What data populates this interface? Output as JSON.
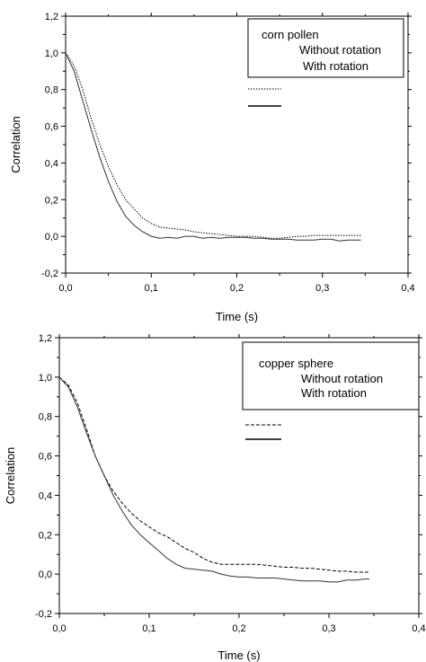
{
  "chart_data": [
    {
      "type": "line",
      "legend_title": "corn pollen",
      "legend_placement": "top-right",
      "xlabel": "Time (s)",
      "ylabel": "Correlation",
      "xlim": [
        0.0,
        0.4
      ],
      "ylim": [
        -0.2,
        1.2
      ],
      "x_ticks": [
        "0,0",
        "0,1",
        "0,2",
        "0,3",
        "0,4"
      ],
      "y_ticks": [
        "-0,2",
        "0,0",
        "0,2",
        "0,4",
        "0,6",
        "0,8",
        "1,0",
        "1,2"
      ],
      "series": [
        {
          "name": "Without rotation",
          "style": "dotted",
          "x": [
            0.0,
            0.01,
            0.02,
            0.03,
            0.04,
            0.05,
            0.06,
            0.07,
            0.08,
            0.09,
            0.1,
            0.11,
            0.12,
            0.13,
            0.14,
            0.15,
            0.16,
            0.17,
            0.18,
            0.19,
            0.2,
            0.21,
            0.22,
            0.23,
            0.24,
            0.25,
            0.26,
            0.27,
            0.28,
            0.29,
            0.3,
            0.31,
            0.32,
            0.33,
            0.34,
            0.345
          ],
          "y": [
            1.0,
            0.93,
            0.8,
            0.64,
            0.5,
            0.38,
            0.28,
            0.2,
            0.15,
            0.1,
            0.07,
            0.05,
            0.045,
            0.04,
            0.035,
            0.025,
            0.02,
            0.015,
            0.01,
            0.005,
            0.0,
            0.0,
            0.0,
            -0.005,
            -0.01,
            -0.01,
            -0.005,
            0.0,
            0.0,
            0.005,
            0.005,
            0.005,
            0.005,
            0.005,
            0.005,
            0.005
          ]
        },
        {
          "name": "With rotation",
          "style": "solid",
          "x": [
            0.0,
            0.01,
            0.02,
            0.03,
            0.04,
            0.05,
            0.06,
            0.07,
            0.08,
            0.09,
            0.1,
            0.11,
            0.12,
            0.13,
            0.14,
            0.15,
            0.16,
            0.17,
            0.18,
            0.19,
            0.2,
            0.21,
            0.22,
            0.23,
            0.24,
            0.25,
            0.26,
            0.27,
            0.28,
            0.29,
            0.3,
            0.31,
            0.32,
            0.33,
            0.34,
            0.345
          ],
          "y": [
            1.0,
            0.9,
            0.74,
            0.58,
            0.43,
            0.3,
            0.19,
            0.11,
            0.06,
            0.025,
            0.0,
            -0.01,
            -0.005,
            -0.01,
            0.0,
            0.0,
            -0.01,
            -0.005,
            -0.01,
            -0.005,
            -0.005,
            -0.005,
            -0.01,
            -0.01,
            -0.015,
            -0.015,
            -0.015,
            -0.02,
            -0.02,
            -0.02,
            -0.015,
            -0.015,
            -0.025,
            -0.02,
            -0.02,
            -0.02
          ]
        }
      ]
    },
    {
      "type": "line",
      "legend_title": "copper sphere",
      "legend_placement": "top-right",
      "xlabel": "Time (s)",
      "ylabel": "Correlation",
      "xlim": [
        0.0,
        0.4
      ],
      "ylim": [
        -0.2,
        1.2
      ],
      "x_ticks": [
        "0,0",
        "0,1",
        "0,2",
        "0,3",
        "0,4"
      ],
      "y_ticks": [
        "-0,2",
        "0,0",
        "0,2",
        "0,4",
        "0,6",
        "0,8",
        "1,0",
        "1,2"
      ],
      "series": [
        {
          "name": "Without rotation",
          "style": "dashed",
          "x": [
            0.0,
            0.01,
            0.02,
            0.03,
            0.04,
            0.05,
            0.06,
            0.07,
            0.08,
            0.09,
            0.1,
            0.11,
            0.12,
            0.13,
            0.14,
            0.15,
            0.16,
            0.17,
            0.18,
            0.19,
            0.2,
            0.21,
            0.22,
            0.23,
            0.24,
            0.25,
            0.26,
            0.27,
            0.28,
            0.29,
            0.3,
            0.31,
            0.32,
            0.33,
            0.34,
            0.345
          ],
          "y": [
            1.0,
            0.96,
            0.87,
            0.74,
            0.6,
            0.5,
            0.42,
            0.36,
            0.31,
            0.27,
            0.24,
            0.21,
            0.19,
            0.16,
            0.13,
            0.11,
            0.08,
            0.06,
            0.05,
            0.05,
            0.05,
            0.05,
            0.05,
            0.045,
            0.04,
            0.035,
            0.035,
            0.03,
            0.03,
            0.025,
            0.02,
            0.015,
            0.015,
            0.01,
            0.01,
            0.01
          ]
        },
        {
          "name": "With rotation",
          "style": "solid",
          "x": [
            0.0,
            0.01,
            0.02,
            0.03,
            0.04,
            0.05,
            0.06,
            0.07,
            0.08,
            0.09,
            0.1,
            0.11,
            0.12,
            0.13,
            0.14,
            0.15,
            0.16,
            0.17,
            0.18,
            0.19,
            0.2,
            0.21,
            0.22,
            0.23,
            0.24,
            0.25,
            0.26,
            0.27,
            0.28,
            0.29,
            0.3,
            0.31,
            0.32,
            0.33,
            0.34,
            0.345
          ],
          "y": [
            1.0,
            0.95,
            0.85,
            0.72,
            0.6,
            0.5,
            0.4,
            0.32,
            0.25,
            0.2,
            0.16,
            0.12,
            0.08,
            0.05,
            0.03,
            0.025,
            0.02,
            0.015,
            0.0,
            -0.01,
            -0.015,
            -0.015,
            -0.02,
            -0.02,
            -0.02,
            -0.025,
            -0.03,
            -0.035,
            -0.035,
            -0.035,
            -0.04,
            -0.04,
            -0.03,
            -0.03,
            -0.025,
            -0.025
          ]
        }
      ]
    }
  ]
}
